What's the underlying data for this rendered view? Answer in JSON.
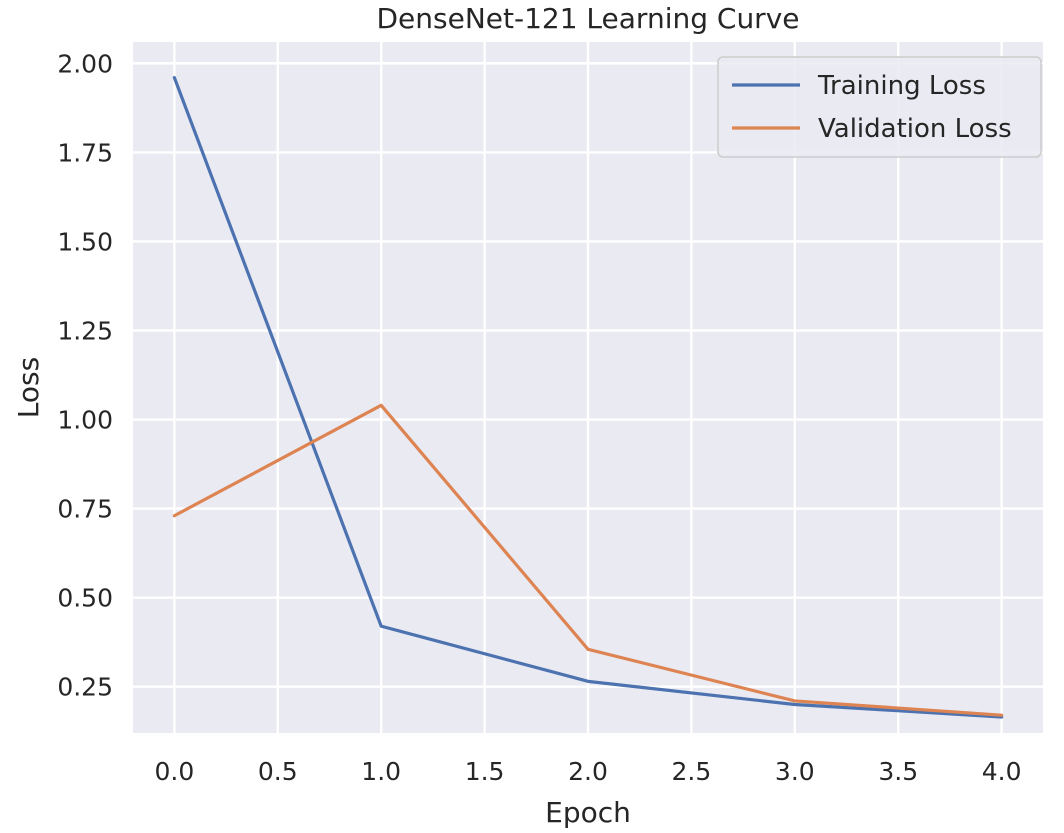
{
  "chart_data": {
    "type": "line",
    "title": "DenseNet-121 Learning Curve",
    "xlabel": "Epoch",
    "ylabel": "Loss",
    "xlim": [
      -0.2,
      4.2
    ],
    "ylim": [
      0.12,
      2.06
    ],
    "x": [
      0,
      1,
      2,
      3,
      4
    ],
    "xticks": [
      0.0,
      0.5,
      1.0,
      1.5,
      2.0,
      2.5,
      3.0,
      3.5,
      4.0
    ],
    "xtick_labels": [
      "0.0",
      "0.5",
      "1.0",
      "1.5",
      "2.0",
      "2.5",
      "3.0",
      "3.5",
      "4.0"
    ],
    "yticks": [
      0.25,
      0.5,
      0.75,
      1.0,
      1.25,
      1.5,
      1.75,
      2.0
    ],
    "ytick_labels": [
      "0.25",
      "0.50",
      "0.75",
      "1.00",
      "1.25",
      "1.50",
      "1.75",
      "2.00"
    ],
    "grid": true,
    "legend_position": "top-right",
    "series": [
      {
        "name": "Training Loss",
        "color": "#4c72b0",
        "values": [
          1.96,
          0.42,
          0.265,
          0.2,
          0.165
        ]
      },
      {
        "name": "Validation Loss",
        "color": "#dd8452",
        "values": [
          0.73,
          1.04,
          0.355,
          0.21,
          0.17
        ]
      }
    ]
  }
}
